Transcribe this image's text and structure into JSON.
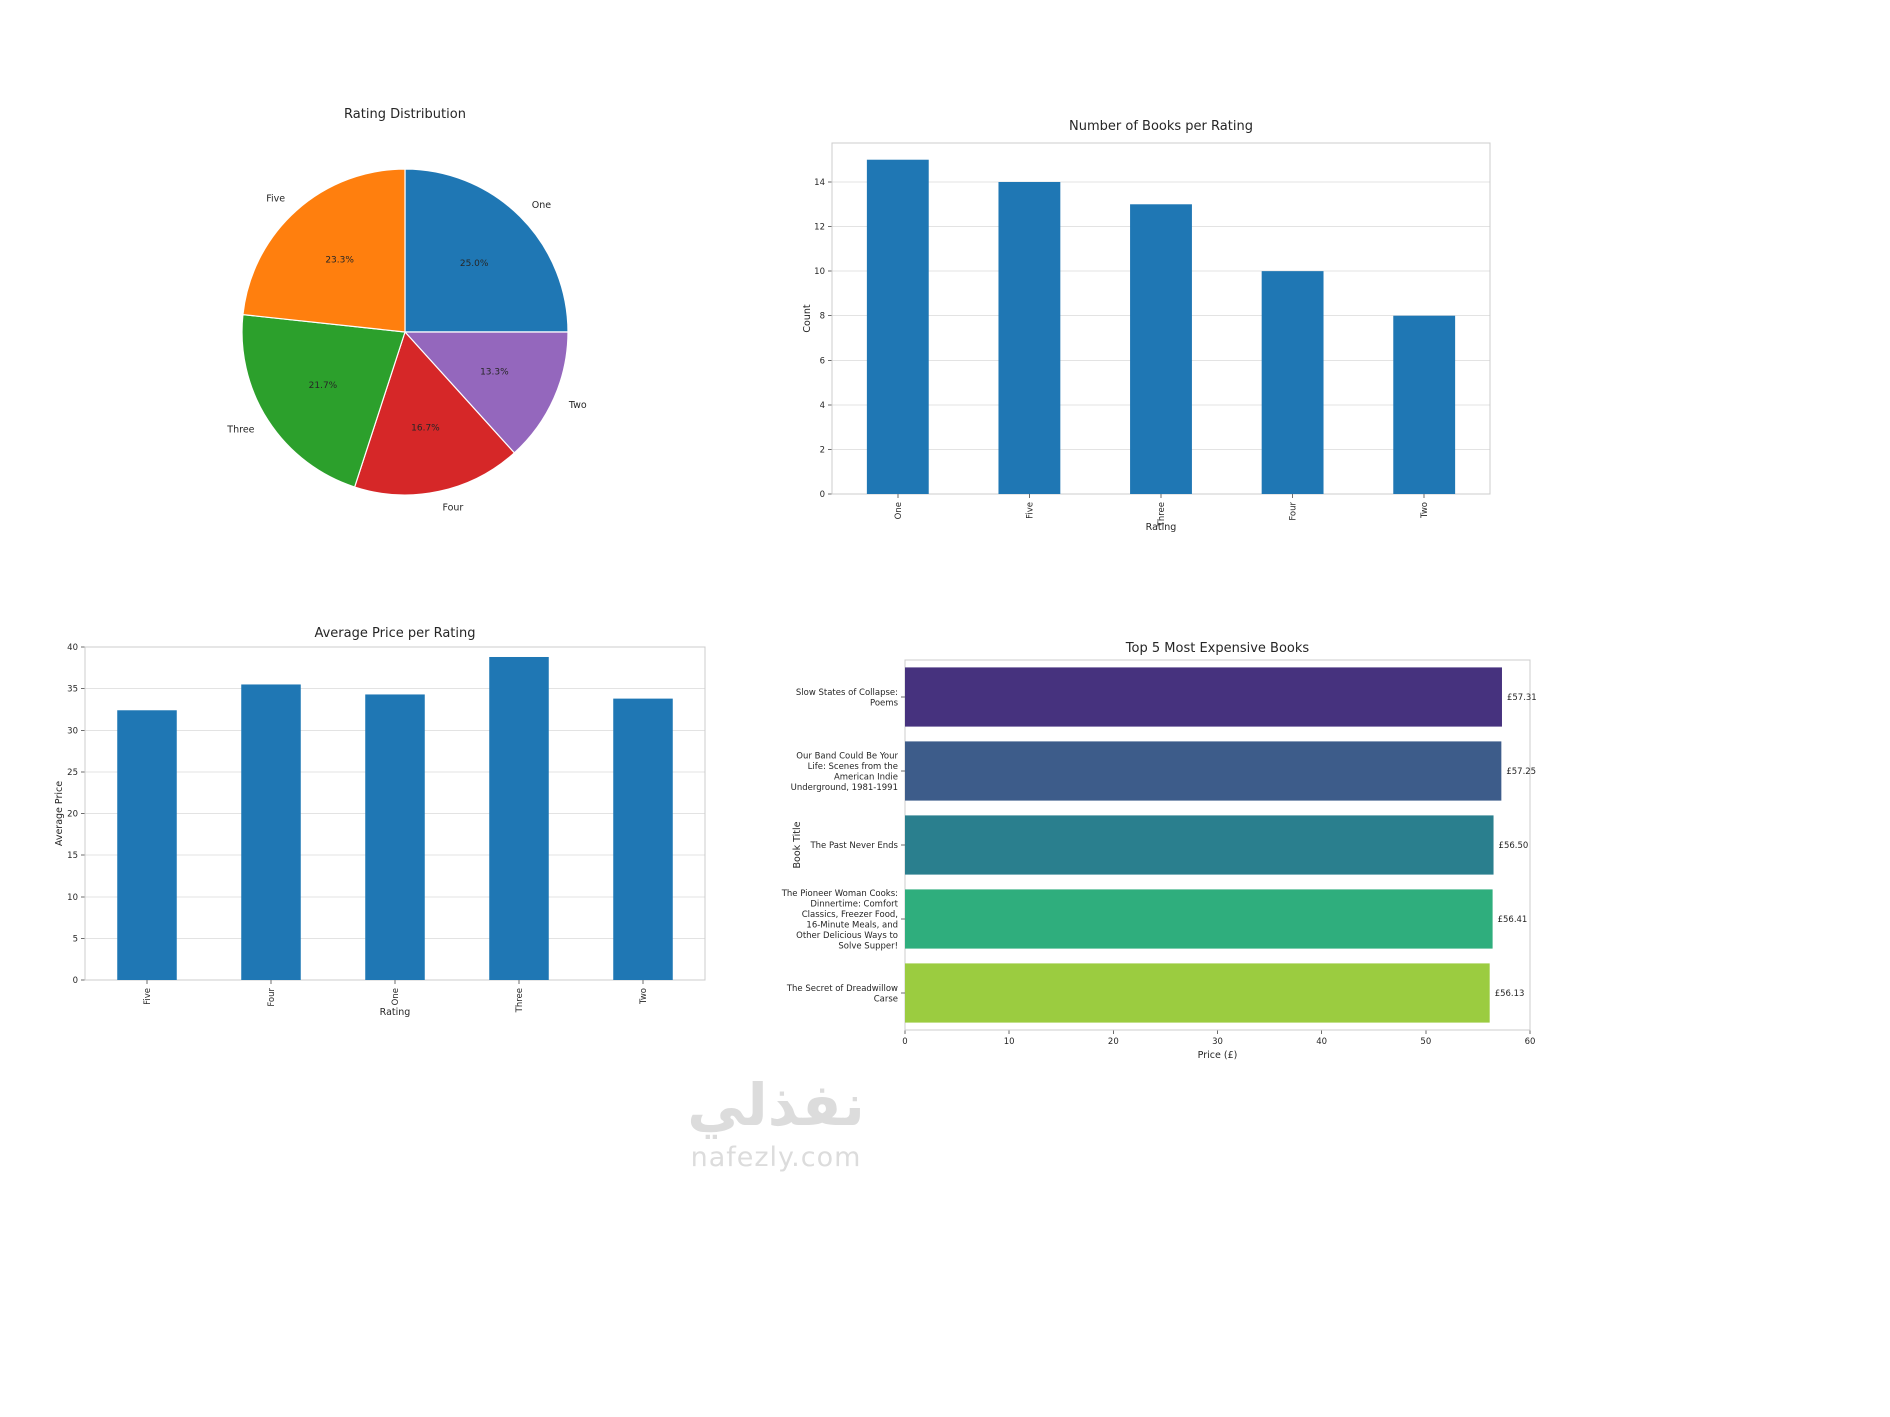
{
  "page": {
    "background": "#ffffff"
  },
  "watermark": {
    "arabic": "نفذلي",
    "site": "nafezly.com",
    "color": "#dcdcdc"
  },
  "chart_data": [
    {
      "id": "rating-distribution",
      "type": "pie",
      "title": "Rating Distribution",
      "labels": [
        "One",
        "Two",
        "Four",
        "Three",
        "Five"
      ],
      "values": [
        25.0,
        13.3,
        16.7,
        21.7,
        23.3
      ],
      "percent_labels": [
        "25.0%",
        "13.3%",
        "16.7%",
        "21.7%",
        "23.3%"
      ],
      "colors": [
        "#1f77b4",
        "#9467bd",
        "#d62728",
        "#2ca02c",
        "#ff7f0e"
      ],
      "start_angle": "top",
      "direction": "clockwise",
      "legend_position": "none"
    },
    {
      "id": "books-per-rating",
      "type": "bar",
      "title": "Number of Books per Rating",
      "categories": [
        "One",
        "Five",
        "Three",
        "Four",
        "Two"
      ],
      "values": [
        15,
        14,
        13,
        10,
        8
      ],
      "xlabel": "Rating",
      "ylabel": "Count",
      "ylim": [
        0,
        15.75
      ],
      "yticks": [
        0,
        2,
        4,
        6,
        8,
        10,
        12,
        14
      ],
      "bar_color": "#1f77b4",
      "grid": true,
      "legend_position": "none"
    },
    {
      "id": "avg-price-per-rating",
      "type": "bar",
      "title": "Average Price per Rating",
      "categories": [
        "Five",
        "Four",
        "One",
        "Three",
        "Two"
      ],
      "values": [
        32.4,
        35.5,
        34.3,
        38.8,
        33.8
      ],
      "xlabel": "Rating",
      "ylabel": "Average Price",
      "ylim": [
        0,
        40
      ],
      "yticks": [
        0,
        5,
        10,
        15,
        20,
        25,
        30,
        35,
        40
      ],
      "bar_color": "#1f77b4",
      "grid": true,
      "legend_position": "none"
    },
    {
      "id": "top5-expensive-books",
      "type": "bar-horizontal",
      "title": "Top 5 Most Expensive Books",
      "categories": [
        "Slow States of Collapse: Poems",
        "Our Band Could Be Your Life: Scenes from the American Indie Underground, 1981-1991",
        "The Past Never Ends",
        "The Pioneer Woman Cooks: Dinnertime: Comfort Classics, Freezer Food, 16-Minute Meals, and Other Delicious Ways to Solve Supper!",
        "The Secret of Dreadwillow Carse"
      ],
      "values": [
        57.31,
        57.25,
        56.5,
        56.41,
        56.13
      ],
      "value_labels": [
        "£57.31",
        "£57.25",
        "£56.50",
        "£56.41",
        "£56.13"
      ],
      "xlabel": "Price (£)",
      "ylabel": "Book Title",
      "xlim": [
        0,
        60
      ],
      "xticks": [
        0,
        10,
        20,
        30,
        40,
        50,
        60
      ],
      "bar_colors": [
        "#46327e",
        "#3d5c8a",
        "#2a7f8e",
        "#2fae7d",
        "#9bcc40"
      ],
      "grid": false,
      "legend_position": "none"
    }
  ]
}
